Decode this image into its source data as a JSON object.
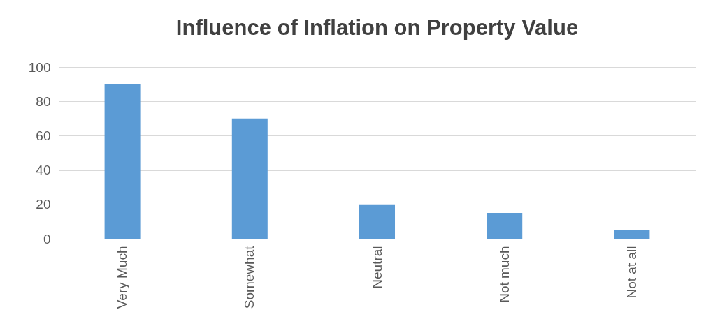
{
  "chart_data": {
    "type": "bar",
    "title": "Influence of Inflation on Property Value",
    "categories": [
      "Very Much",
      "Somewhat",
      "Neutral",
      "Not much",
      "Not at all"
    ],
    "values": [
      90,
      70,
      20,
      15,
      5
    ],
    "color": "#5b9bd5",
    "ylim": [
      0,
      100
    ],
    "yticks": [
      0,
      20,
      40,
      60,
      80,
      100
    ],
    "grid": "y"
  }
}
